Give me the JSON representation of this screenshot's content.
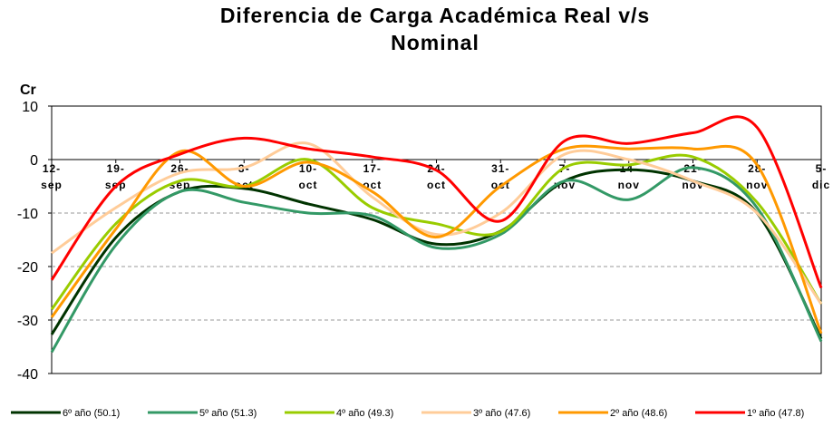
{
  "chart_data": {
    "type": "line",
    "title": "Diferencia de Carga Académica Real v/s Nominal",
    "y_label": "Cr",
    "categories": [
      "12-sep",
      "19-sep",
      "26-sep",
      "3-oct",
      "10-oct",
      "17-oct",
      "24-oct",
      "31-oct",
      "7-nov",
      "14-nov",
      "21-nov",
      "28-nov",
      "5-dic"
    ],
    "series": [
      {
        "name": "6º año (50.1)",
        "color": "#003300",
        "values": [
          -32.7,
          -14.6,
          -6,
          -5.4,
          -8.3,
          -11.2,
          -15.8,
          -13.4,
          -4,
          -1.9,
          -4,
          -10,
          -33.5
        ]
      },
      {
        "name": "5º año (51.3)",
        "color": "#339966",
        "values": [
          -36,
          -16,
          -6,
          -8,
          -10,
          -10.5,
          -16.5,
          -14,
          -4,
          -7.5,
          -1.5,
          -9,
          -34
        ]
      },
      {
        "name": "4º año (49.3)",
        "color": "#99cc00",
        "values": [
          -28,
          -12,
          -4,
          -5,
          0,
          -9,
          -12,
          -13.5,
          -1.5,
          -1,
          0.5,
          -8,
          -27
        ]
      },
      {
        "name": "3º año (47.6)",
        "color": "#ffcc99",
        "values": [
          -17.5,
          -9,
          -2.5,
          -1.5,
          3,
          -7,
          -14,
          -10,
          1,
          0,
          -4,
          -10,
          -27
        ]
      },
      {
        "name": "2º año (48.6)",
        "color": "#ff9900",
        "values": [
          -29.5,
          -13,
          1.5,
          -5,
          -0.5,
          -6,
          -14.5,
          -5,
          2,
          2,
          2,
          -1,
          -32.5
        ]
      },
      {
        "name": "1º año (47.8)",
        "color": "#ff0000",
        "values": [
          -22.5,
          -5,
          1,
          4,
          2,
          0.5,
          -2,
          -11.5,
          3.5,
          3,
          5,
          6,
          -24
        ]
      }
    ],
    "ylim": [
      -40,
      10
    ],
    "yticks": [
      -40,
      -30,
      -20,
      -10,
      0,
      10
    ],
    "grid": true,
    "legend": "bottom"
  }
}
